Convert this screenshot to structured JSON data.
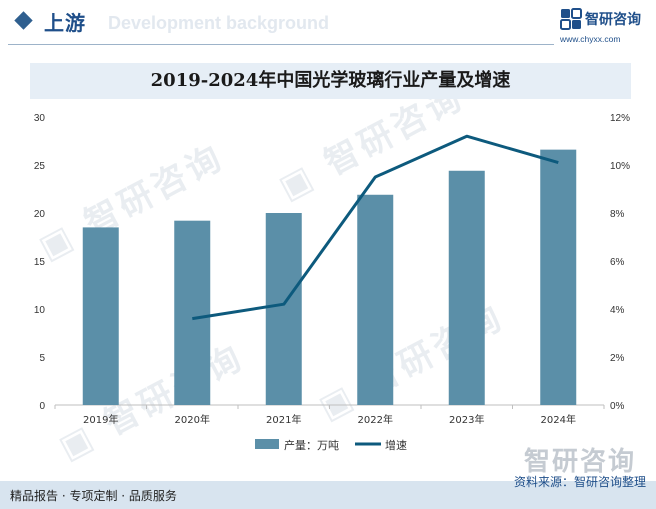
{
  "header": {
    "title": "上游",
    "ghost_text": "Development background"
  },
  "logo": {
    "name": "智研咨询",
    "url": "www.chyxx.com"
  },
  "chart_data": {
    "type": "bar",
    "title": "2019-2024年中国光学玻璃行业产量及增速",
    "categories": [
      "2019年",
      "2020年",
      "2021年",
      "2022年",
      "2023年",
      "2024年"
    ],
    "series": [
      {
        "name": "产量：万吨",
        "type": "bar",
        "axis": "left",
        "color": "#5b8fa8",
        "values": [
          18.5,
          19.2,
          20.0,
          21.9,
          24.4,
          26.6
        ]
      },
      {
        "name": "增速",
        "type": "line",
        "axis": "right",
        "color": "#0d5a7d",
        "values": [
          null,
          3.6,
          4.2,
          9.5,
          11.2,
          10.1
        ]
      }
    ],
    "y_left": {
      "min": 0,
      "max": 30,
      "ticks": [
        "0",
        "5",
        "10",
        "15",
        "20",
        "25",
        "30"
      ]
    },
    "y_right": {
      "min": 0,
      "max": 12,
      "ticks": [
        "0%",
        "2%",
        "4%",
        "6%",
        "8%",
        "10%",
        "12%"
      ]
    },
    "grid": false,
    "legend_position": "bottom"
  },
  "footer": {
    "left_text": "精品报告 · 专项定制 · 品质服务",
    "right_text": "资料来源：智研咨询整理",
    "brand": "智研咨询"
  },
  "watermark": "智研咨询"
}
